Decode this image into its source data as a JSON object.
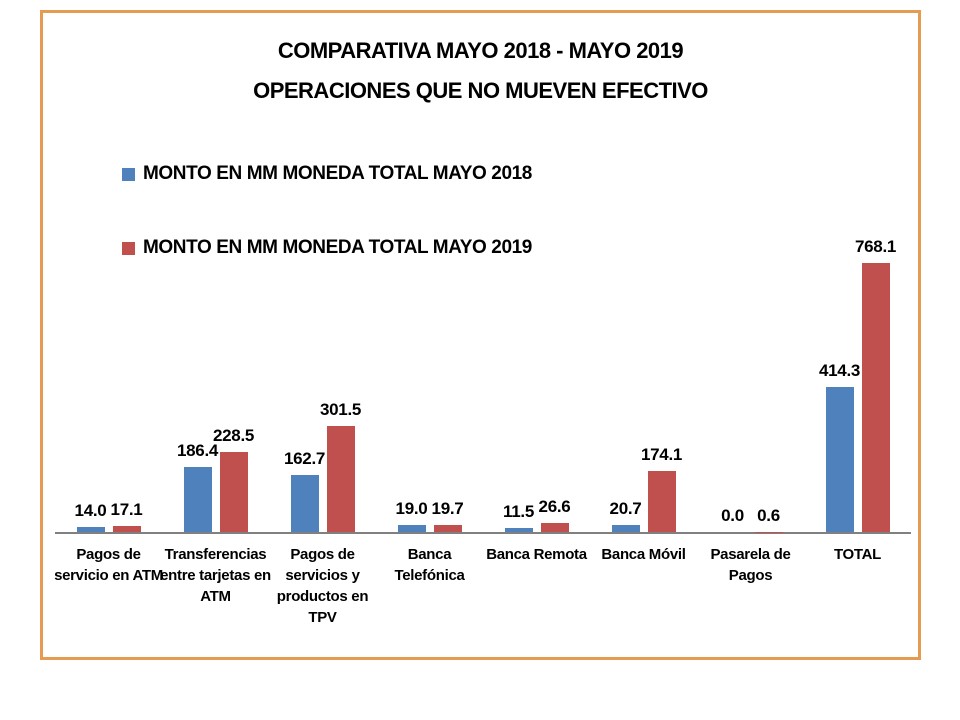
{
  "title": {
    "line1": "COMPARATIVA MAYO 2018 - MAYO 2019",
    "line2": "OPERACIONES QUE NO MUEVEN EFECTIVO"
  },
  "colors": {
    "series_2018": "#4F81BD",
    "series_2019": "#C0504D",
    "frame_border": "#E59B52",
    "axis_line": "#808080",
    "text": "#000000"
  },
  "chart_data": {
    "type": "bar",
    "title": "COMPARATIVA MAYO 2018 - MAYO 2019 / OPERACIONES QUE NO MUEVEN EFECTIVO",
    "categories": [
      "Pagos de servicio en ATM",
      "Transferencias entre tarjetas en ATM",
      "Pagos de servicios y productos en TPV",
      "Banca Telefónica",
      "Banca Remota",
      "Banca Móvil",
      "Pasarela de Pagos",
      "TOTAL"
    ],
    "series": [
      {
        "name": "MONTO EN MM MONEDA TOTAL MAYO 2018",
        "color": "#4F81BD",
        "values": [
          14.0,
          186.4,
          162.7,
          19.0,
          11.5,
          20.7,
          0.0,
          414.3
        ]
      },
      {
        "name": "MONTO EN MM MONEDA TOTAL MAYO 2019",
        "color": "#C0504D",
        "values": [
          17.1,
          228.5,
          301.5,
          19.7,
          26.6,
          174.1,
          0.6,
          768.1
        ]
      }
    ],
    "value_label_decimals": 1,
    "data_labels": true,
    "ylim": [
      0,
      800
    ],
    "grid": false,
    "y_axis_visible": false,
    "legend_position": "top-left"
  }
}
